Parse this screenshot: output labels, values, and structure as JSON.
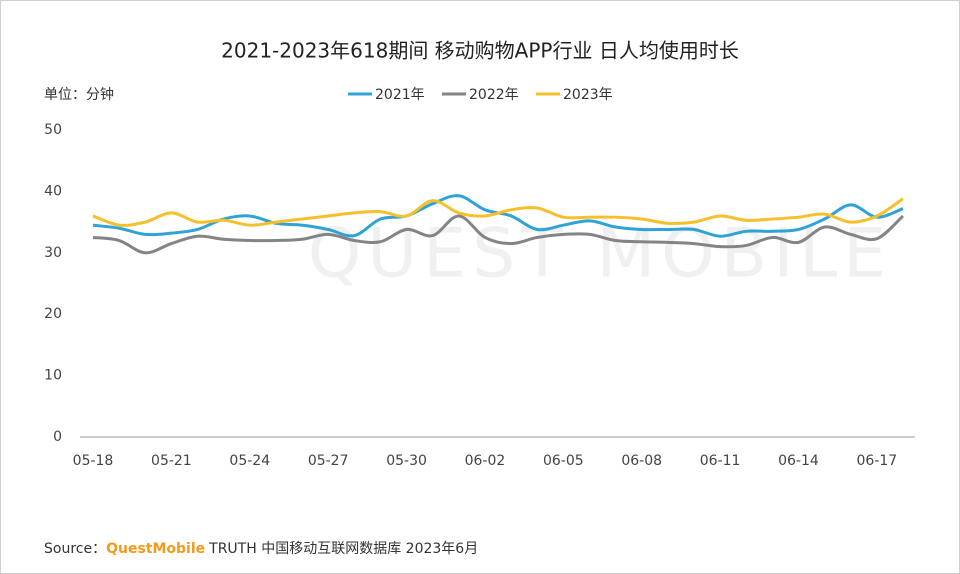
{
  "chart_data": {
    "type": "line",
    "title": "2021-2023年618期间 移动购物APP行业 日人均使用时长",
    "unit_label": "单位：分钟",
    "watermark": "QUEST MOBILE",
    "source": {
      "prefix": "Source：",
      "brand": "QuestMobile",
      "text": "TRUTH 中国移动互联网数据库 2023年6月"
    },
    "categories": [
      "05-18",
      null,
      null,
      "05-21",
      null,
      null,
      "05-24",
      null,
      null,
      "05-27",
      null,
      null,
      "05-30",
      null,
      null,
      "06-02",
      null,
      null,
      "06-05",
      null,
      null,
      "06-08",
      null,
      null,
      "06-11",
      null,
      null,
      "06-14",
      null,
      null,
      "06-17",
      null
    ],
    "series": [
      {
        "name": "2021年",
        "color": "#2fa3d6",
        "values": [
          34.5,
          34,
          33,
          33.2,
          33.8,
          35.5,
          36,
          34.8,
          34.5,
          33.8,
          32.8,
          35.5,
          36,
          38,
          39.3,
          37,
          36,
          33.8,
          34.5,
          35.2,
          34.2,
          33.8,
          33.8,
          33.8,
          32.7,
          33.5,
          33.5,
          33.8,
          35.5,
          37.8,
          35.8,
          37.2
        ]
      },
      {
        "name": "2022年",
        "color": "#848484",
        "values": [
          32.5,
          32,
          30,
          31.5,
          32.7,
          32.2,
          32,
          32,
          32.2,
          33,
          32,
          31.8,
          33.8,
          32.8,
          36,
          32.5,
          31.5,
          32.5,
          33,
          33,
          32,
          31.8,
          31.7,
          31.5,
          31,
          31.2,
          32.5,
          31.7,
          34.2,
          33,
          32.3,
          36
        ]
      },
      {
        "name": "2023年",
        "color": "#f5c02a",
        "values": [
          36,
          34.5,
          35,
          36.5,
          35,
          35.3,
          34.5,
          35,
          35.5,
          36,
          36.5,
          36.7,
          36,
          38.5,
          36.5,
          36,
          37,
          37.3,
          35.8,
          35.8,
          35.8,
          35.5,
          34.8,
          35,
          36,
          35.3,
          35.5,
          35.8,
          36.3,
          35,
          36,
          38.8
        ]
      }
    ],
    "ylim": [
      0,
      50
    ],
    "yticks": [
      0,
      10,
      20,
      30,
      40,
      50
    ],
    "grid": false
  }
}
